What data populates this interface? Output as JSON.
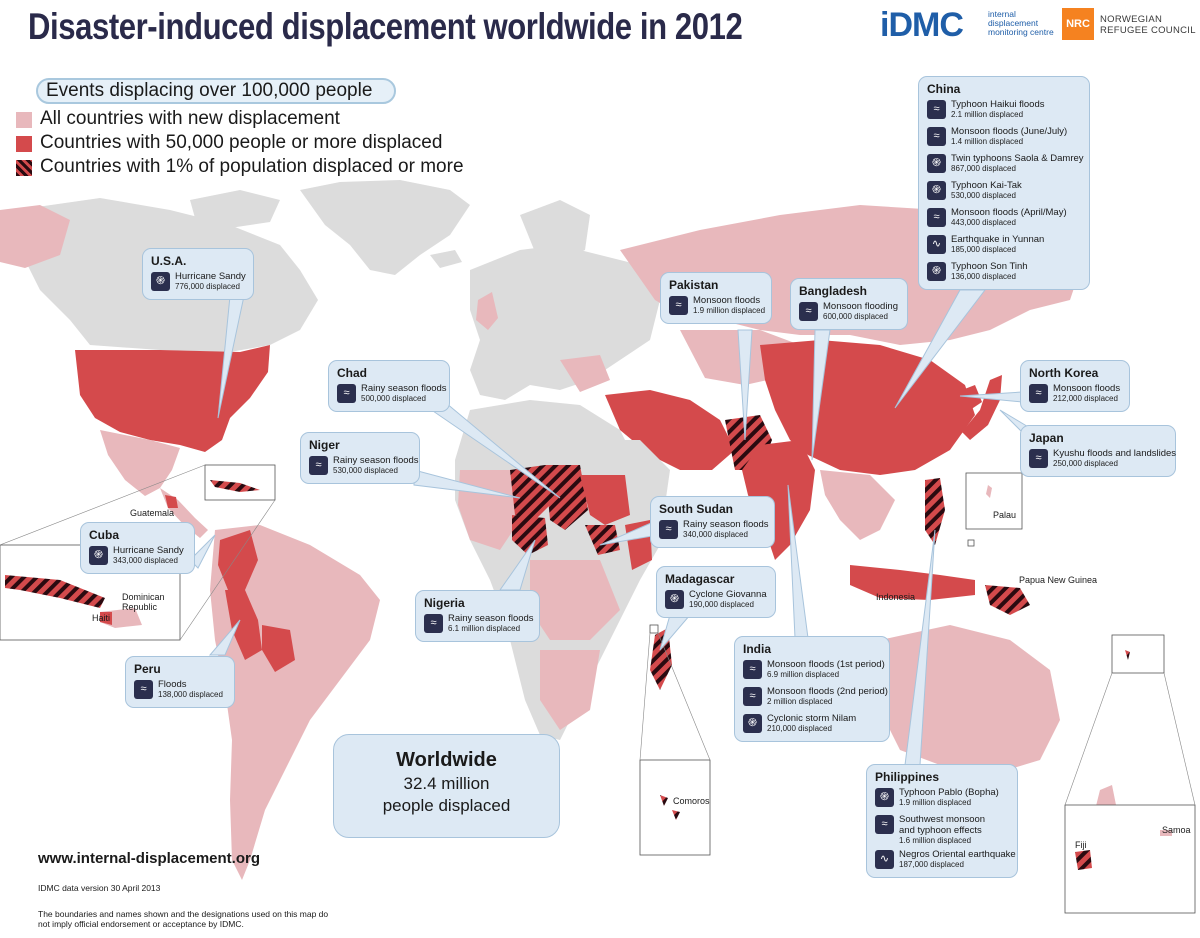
{
  "title": "Disaster-induced displacement worldwide in 2012",
  "logos": {
    "idmc_mark": "iDMC",
    "idmc_sub": "internal displacement monitoring centre",
    "nrc_mark": "NRC",
    "nrc_text": "NORWEGIAN REFUGEE COUNCIL"
  },
  "legend": {
    "events": "Events displacing over 100,000 people",
    "all": "All countries with new displacement",
    "fifty": "Countries with 50,000 people or more displaced",
    "one_percent": "Countries with 1% of population displaced or more"
  },
  "colors": {
    "new_displacement": "#e8b8bc",
    "over_50000": "#d44a4c",
    "no_data": "#dcdcdc",
    "ocean": "#ffffff",
    "callout_bg": "#dde9f4",
    "callout_border": "#a8c4dc",
    "icon_bg": "#2b2f4e"
  },
  "callouts": {
    "usa": {
      "name": "U.S.A.",
      "events": [
        {
          "icon": "hurricane-icon",
          "name": "Hurricane Sandy",
          "displaced": "776,000 displaced"
        }
      ]
    },
    "cuba": {
      "name": "Cuba",
      "events": [
        {
          "icon": "hurricane-icon",
          "name": "Hurricane Sandy",
          "displaced": "343,000 displaced"
        }
      ]
    },
    "peru": {
      "name": "Peru",
      "events": [
        {
          "icon": "flood-icon",
          "name": "Floods",
          "displaced": "138,000 displaced"
        }
      ]
    },
    "chad": {
      "name": "Chad",
      "events": [
        {
          "icon": "flood-icon",
          "name": "Rainy season floods",
          "displaced": "500,000 displaced"
        }
      ]
    },
    "niger": {
      "name": "Niger",
      "events": [
        {
          "icon": "flood-icon",
          "name": "Rainy season floods",
          "displaced": "530,000 displaced"
        }
      ]
    },
    "nigeria": {
      "name": "Nigeria",
      "events": [
        {
          "icon": "flood-icon",
          "name": "Rainy season floods",
          "displaced": "6.1 million displaced"
        }
      ]
    },
    "south_sudan": {
      "name": "South Sudan",
      "events": [
        {
          "icon": "flood-icon",
          "name": "Rainy season floods",
          "displaced": "340,000 displaced"
        }
      ]
    },
    "madagascar": {
      "name": "Madagascar",
      "events": [
        {
          "icon": "cyclone-icon",
          "name": "Cyclone Giovanna",
          "displaced": "190,000 displaced"
        }
      ]
    },
    "pakistan": {
      "name": "Pakistan",
      "events": [
        {
          "icon": "flood-icon",
          "name": "Monsoon floods",
          "displaced": "1.9 million displaced"
        }
      ]
    },
    "bangladesh": {
      "name": "Bangladesh",
      "events": [
        {
          "icon": "flood-icon",
          "name": "Monsoon flooding",
          "displaced": "600,000 displaced"
        }
      ]
    },
    "india": {
      "name": "India",
      "events": [
        {
          "icon": "flood-icon",
          "name": "Monsoon floods (1st period)",
          "displaced": "6.9 million displaced"
        },
        {
          "icon": "flood-icon",
          "name": "Monsoon floods (2nd period)",
          "displaced": "2 million displaced"
        },
        {
          "icon": "cyclone-icon",
          "name": "Cyclonic storm Nilam",
          "displaced": "210,000 displaced"
        }
      ]
    },
    "china": {
      "name": "China",
      "events": [
        {
          "icon": "flood-icon",
          "name": "Typhoon Haikui floods",
          "displaced": "2.1 million displaced"
        },
        {
          "icon": "flood-icon",
          "name": "Monsoon floods (June/July)",
          "displaced": "1.4 million displaced"
        },
        {
          "icon": "cyclone-icon",
          "name": "Twin typhoons Saola & Damrey",
          "displaced": "867,000 displaced"
        },
        {
          "icon": "cyclone-icon",
          "name": "Typhoon Kai-Tak",
          "displaced": "530,000 displaced"
        },
        {
          "icon": "flood-icon",
          "name": "Monsoon floods (April/May)",
          "displaced": "443,000 displaced"
        },
        {
          "icon": "earthquake-icon",
          "name": "Earthquake in Yunnan",
          "displaced": "185,000 displaced"
        },
        {
          "icon": "cyclone-icon",
          "name": "Typhoon Son Tinh",
          "displaced": "136,000 displaced"
        }
      ]
    },
    "north_korea": {
      "name": "North Korea",
      "events": [
        {
          "icon": "flood-icon",
          "name": "Monsoon floods",
          "displaced": "212,000 displaced"
        }
      ]
    },
    "japan": {
      "name": "Japan",
      "events": [
        {
          "icon": "flood-icon",
          "name": "Kyushu floods and landslides",
          "displaced": "250,000 displaced"
        }
      ]
    },
    "philippines": {
      "name": "Philippines",
      "events": [
        {
          "icon": "cyclone-icon",
          "name": "Typhoon Pablo (Bopha)",
          "displaced": "1.9 million displaced"
        },
        {
          "icon": "flood-icon",
          "name": "Southwest monsoon",
          "name2": "and typhoon effects",
          "displaced": "1.6 million displaced"
        },
        {
          "icon": "earthquake-icon",
          "name": "Negros Oriental earthquake",
          "displaced": "187,000 displaced"
        }
      ]
    }
  },
  "worldwide": {
    "heading": "Worldwide",
    "number": "32.4 million",
    "text": "people displaced"
  },
  "map_labels": {
    "guatemala": "Guatemala",
    "dominican_republic": "Dominican Republic",
    "haiti": "Haiti",
    "palau": "Palau",
    "papua_new_guinea": "Papua New Guinea",
    "indonesia": "Indonesia",
    "comoros": "Comoros",
    "fiji": "Fiji",
    "samoa": "Samoa"
  },
  "footer": {
    "url": "www.internal-displacement.org",
    "version": "IDMC data version 30 April 2013",
    "disclaimer": "The boundaries and names shown and the designations used on this map do not imply official endorsement or acceptance by IDMC."
  }
}
